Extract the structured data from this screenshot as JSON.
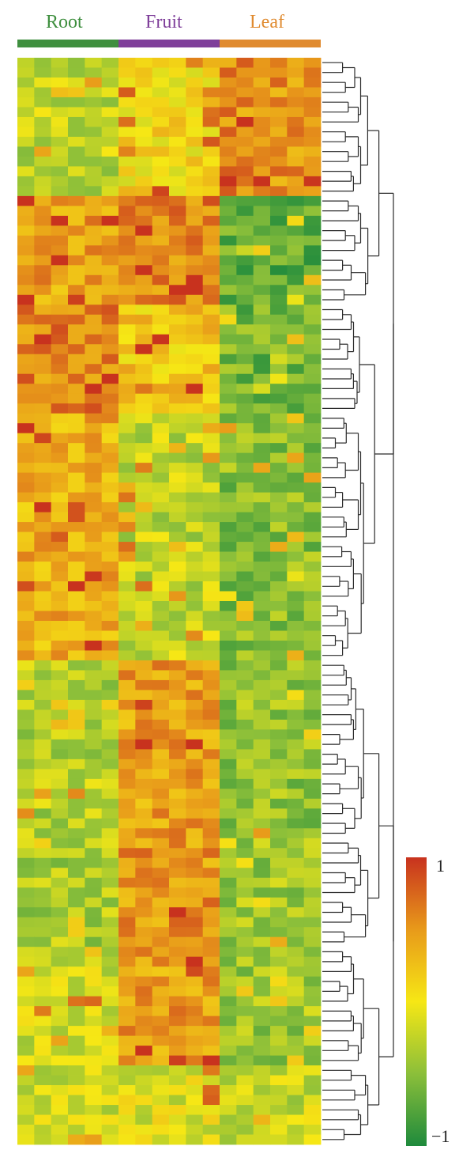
{
  "chart_data": {
    "type": "heatmap",
    "title": "",
    "groups": [
      {
        "name": "Root",
        "color": "#3f8f3f",
        "cols": 6
      },
      {
        "name": "Fruit",
        "color": "#7f3f9a",
        "cols": 6
      },
      {
        "name": "Leaf",
        "color": "#e08b30",
        "cols": 6
      }
    ],
    "n_rows": 110,
    "n_cols": 18,
    "value_range": [
      -1,
      1
    ],
    "colorscale": [
      "#1e8a3c",
      "#8bbf3a",
      "#f6e715",
      "#e89a1a",
      "#c8321e"
    ],
    "colorbar": {
      "min_label": "−1",
      "max_label": "1"
    },
    "dendrogram": "rows",
    "blocks": [
      {
        "rows": [
          0,
          13
        ],
        "root": -0.25,
        "fruit": 0.1,
        "leaf": 0.55
      },
      {
        "rows": [
          14,
          24
        ],
        "root": 0.45,
        "fruit": 0.6,
        "leaf": -0.7
      },
      {
        "rows": [
          25,
          35
        ],
        "root": 0.6,
        "fruit": 0.2,
        "leaf": -0.6
      },
      {
        "rows": [
          36,
          60
        ],
        "root": 0.35,
        "fruit": -0.25,
        "leaf": -0.5
      },
      {
        "rows": [
          61,
          78
        ],
        "root": -0.3,
        "fruit": 0.45,
        "leaf": -0.45
      },
      {
        "rows": [
          79,
          89
        ],
        "root": -0.35,
        "fruit": 0.5,
        "leaf": -0.4
      },
      {
        "rows": [
          90,
          101
        ],
        "root": -0.2,
        "fruit": 0.45,
        "leaf": -0.4
      },
      {
        "rows": [
          102,
          109
        ],
        "root": -0.15,
        "fruit": -0.1,
        "leaf": -0.2
      }
    ]
  }
}
